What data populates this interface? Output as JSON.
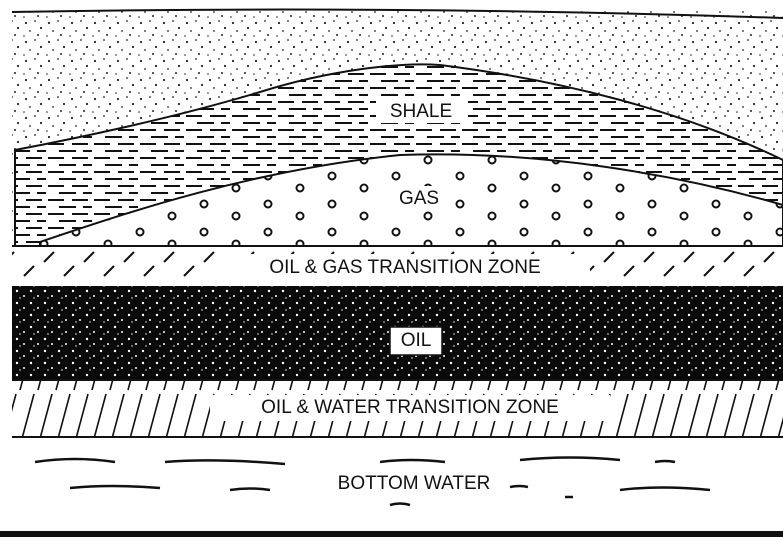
{
  "labels": {
    "shale": "SHALE",
    "gas": "GAS",
    "oil_gas_zone": "OIL & GAS TRANSITION ZONE",
    "oil": "OIL",
    "oil_water_zone": "OIL & WATER TRANSITION ZONE",
    "bottom_water": "BOTTOM WATER"
  }
}
